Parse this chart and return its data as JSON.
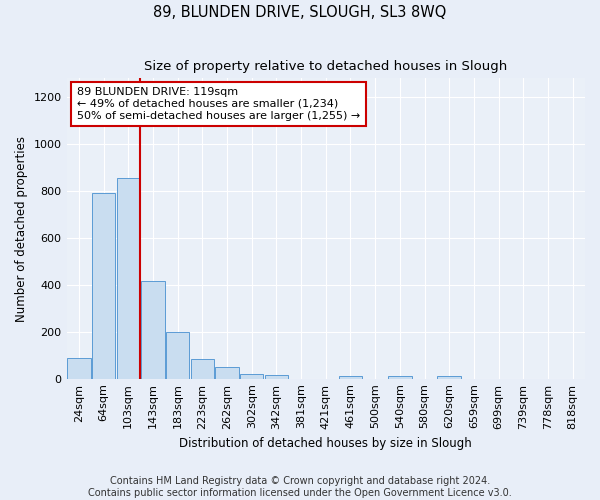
{
  "title": "89, BLUNDEN DRIVE, SLOUGH, SL3 8WQ",
  "subtitle": "Size of property relative to detached houses in Slough",
  "xlabel": "Distribution of detached houses by size in Slough",
  "ylabel": "Number of detached properties",
  "categories": [
    "24sqm",
    "64sqm",
    "103sqm",
    "143sqm",
    "183sqm",
    "223sqm",
    "262sqm",
    "302sqm",
    "342sqm",
    "381sqm",
    "421sqm",
    "461sqm",
    "500sqm",
    "540sqm",
    "580sqm",
    "620sqm",
    "659sqm",
    "699sqm",
    "739sqm",
    "778sqm",
    "818sqm"
  ],
  "values": [
    90,
    790,
    855,
    415,
    200,
    85,
    50,
    22,
    15,
    0,
    0,
    13,
    0,
    10,
    0,
    10,
    0,
    0,
    0,
    0,
    0
  ],
  "bar_color": "#c9ddf0",
  "bar_edge_color": "#5b9bd5",
  "vline_color": "#cc0000",
  "vline_x_index": 2,
  "annotation_line1": "89 BLUNDEN DRIVE: 119sqm",
  "annotation_line2": "← 49% of detached houses are smaller (1,234)",
  "annotation_line3": "50% of semi-detached houses are larger (1,255) →",
  "annotation_box_facecolor": "#ffffff",
  "annotation_box_edgecolor": "#cc0000",
  "ylim": [
    0,
    1280
  ],
  "yticks": [
    0,
    200,
    400,
    600,
    800,
    1000,
    1200
  ],
  "footer_line1": "Contains HM Land Registry data © Crown copyright and database right 2024.",
  "footer_line2": "Contains public sector information licensed under the Open Government Licence v3.0.",
  "title_fontsize": 10.5,
  "subtitle_fontsize": 9.5,
  "axis_label_fontsize": 8.5,
  "tick_fontsize": 8,
  "annot_fontsize": 8,
  "footer_fontsize": 7,
  "bg_color": "#e8eef8",
  "plot_bg_color": "#eaf0f8"
}
